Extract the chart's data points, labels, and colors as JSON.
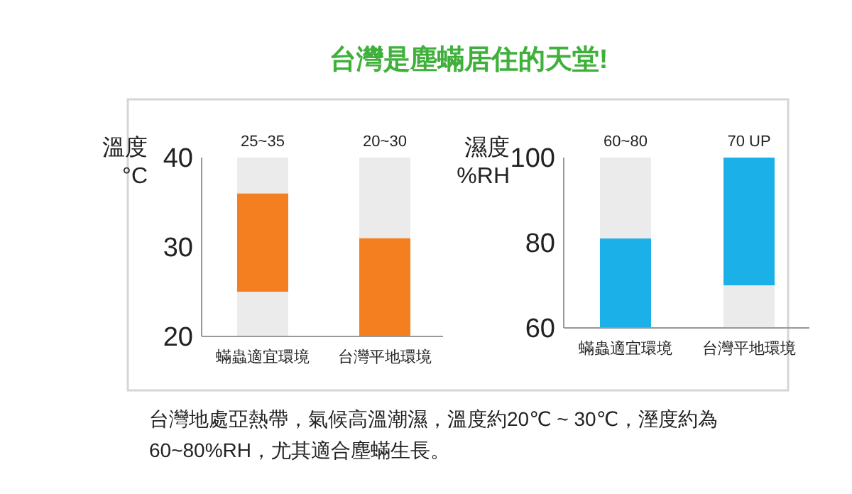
{
  "chart_data": [
    {
      "type": "bar",
      "title": "台灣是塵蟎居住的天堂!",
      "ylabel": "溫度\n°C",
      "categories": [
        "蟎蟲適宜環境",
        "台灣平地環境"
      ],
      "ylim": [
        20,
        40
      ],
      "yticks": [
        20,
        30,
        40
      ],
      "series": [
        {
          "color": "#ebebeb",
          "values": [
            5,
            null
          ],
          "base": [
            20,
            null
          ]
        },
        {
          "color": "#f47f20",
          "values": [
            11,
            11
          ],
          "base": [
            25,
            20
          ]
        },
        {
          "color": "#ebebeb",
          "values": [
            4,
            9
          ],
          "base": [
            36,
            31
          ]
        }
      ],
      "annotations": [
        {
          "text": "25~35",
          "x": "蟎蟲適宜環境",
          "y": 40
        },
        {
          "text": "20~30",
          "x": "台灣平地環境",
          "y": 40
        }
      ]
    },
    {
      "type": "bar",
      "ylabel": "濕度\n%RH",
      "categories": [
        "蟎蟲適宜環境",
        "台灣平地環境"
      ],
      "ylim": [
        60,
        100
      ],
      "yticks": [
        60,
        80,
        100
      ],
      "series": [
        {
          "color": "#ebebeb",
          "values": [
            null,
            10
          ],
          "base": [
            null,
            60
          ]
        },
        {
          "color": "#1cb0e8",
          "values": [
            21,
            30
          ],
          "base": [
            60,
            70
          ]
        },
        {
          "color": "#ebebeb",
          "values": [
            19,
            null
          ],
          "base": [
            81,
            null
          ]
        }
      ],
      "annotations": [
        {
          "text": "60~80",
          "x": "蟎蟲適宜環境",
          "y": 100
        },
        {
          "text": "70 UP",
          "x": "台灣平地環境",
          "y": 100
        },
        "台灣地處亞熱帶，氣候高溫潮濕，溫度約20℃ ~ 30℃，溼度約為60~80%RH，尤其適合塵蟎生長。"
      ]
    }
  ]
}
